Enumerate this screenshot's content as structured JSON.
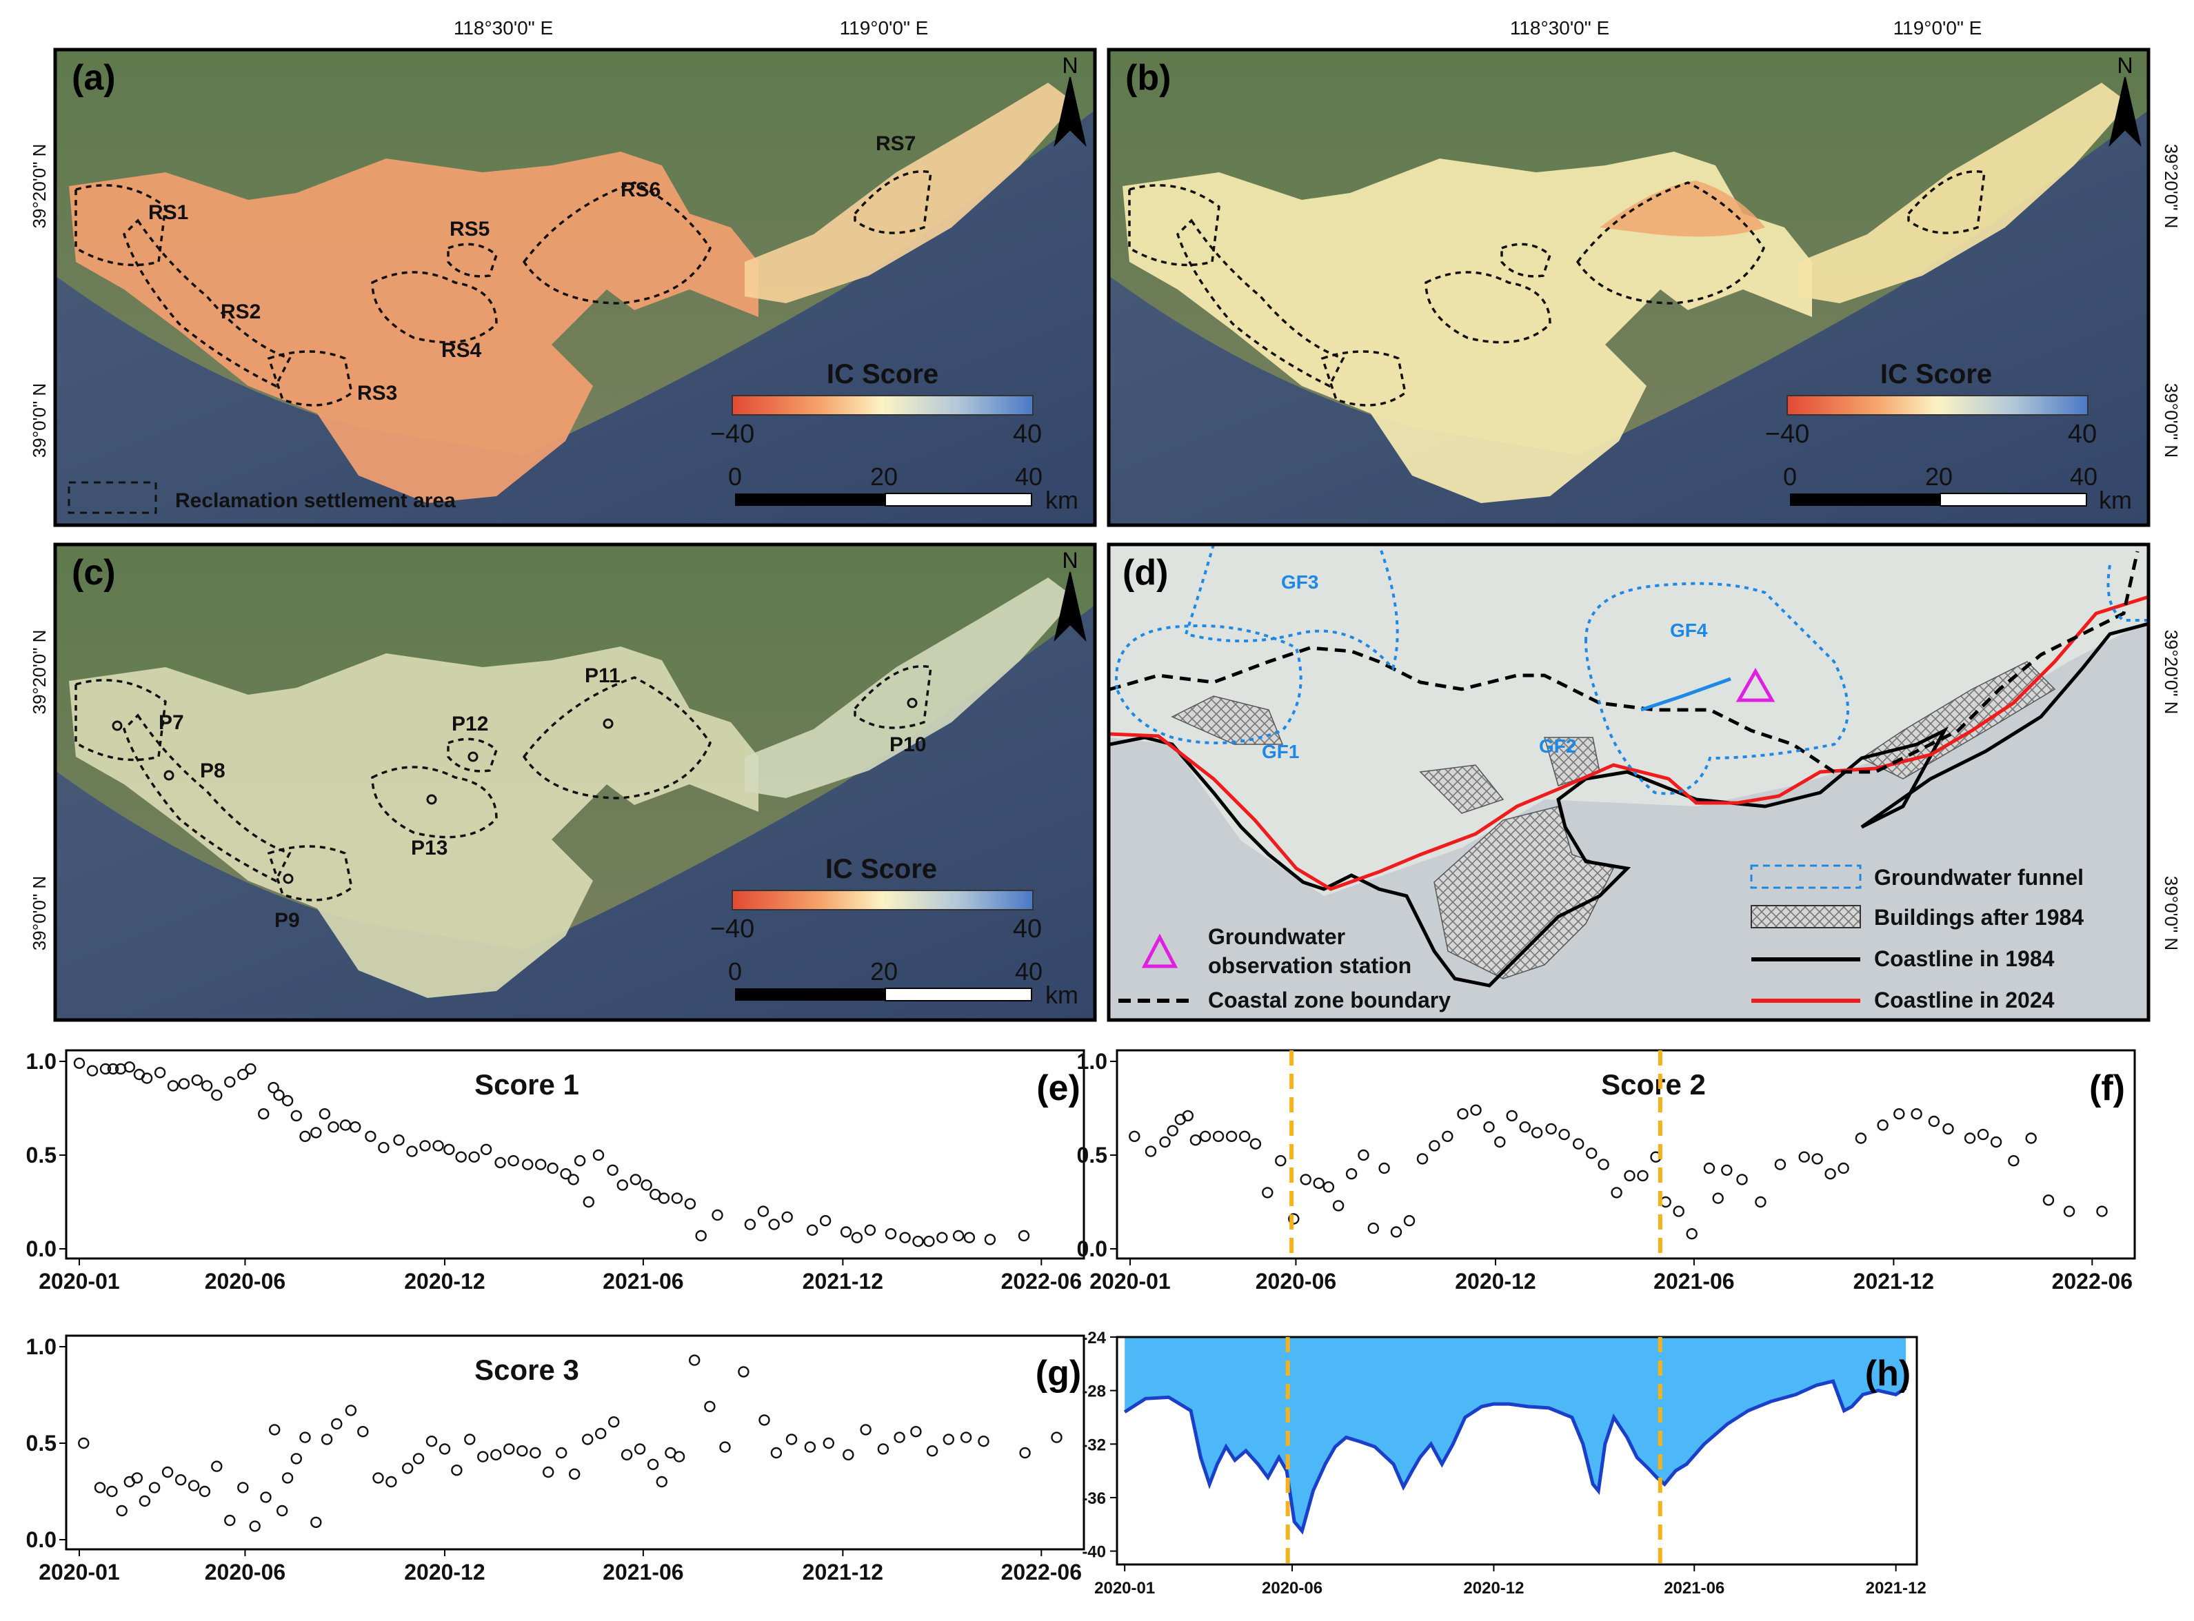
{
  "coords": {
    "lon1": "118°30'0\" E",
    "lon2": "119°0'0\" E",
    "lat1": "39°20'0\" N",
    "lat2": "39°0'0\" N"
  },
  "north": "N",
  "panels": {
    "a": {
      "label": "(a)",
      "zones": [
        "RS1",
        "RS2",
        "RS3",
        "RS4",
        "RS5",
        "RS6",
        "RS7"
      ],
      "colorbar": {
        "title": "IC Score",
        "min": "−40",
        "max": "40"
      },
      "scalebar": {
        "ticks": [
          "0",
          "20",
          "40"
        ],
        "unit": "km"
      },
      "legend": "Reclamation settlement area"
    },
    "b": {
      "label": "(b)",
      "colorbar": {
        "title": "IC Score",
        "min": "−40",
        "max": "40"
      },
      "scalebar": {
        "ticks": [
          "0",
          "20",
          "40"
        ],
        "unit": "km"
      }
    },
    "c": {
      "label": "(c)",
      "points": [
        "P7",
        "P8",
        "P9",
        "P10",
        "P11",
        "P12",
        "P13"
      ],
      "colorbar": {
        "title": "IC Score",
        "min": "−40",
        "max": "40"
      },
      "scalebar": {
        "ticks": [
          "0",
          "20",
          "40"
        ],
        "unit": "km"
      }
    },
    "d": {
      "label": "(d)",
      "funnels": [
        "GF1",
        "GF2",
        "GF3",
        "GF4"
      ],
      "legend": {
        "funnel": "Groundwater funnel",
        "buildings": "Buildings after 1984",
        "coast1984": "Coastline in 1984",
        "coast2024": "Coastline in 2024",
        "station_line1": "Groundwater",
        "station_line2": "observation station",
        "boundary": "Coastal zone boundary"
      }
    }
  },
  "colors": {
    "ic_low": "#e34a33",
    "ic_mid": "#fbf3c4",
    "ic_high": "#4a78c7",
    "funnel": "#1e88e5",
    "coast2024": "#ee1c1c",
    "coast1984": "#000000",
    "station": "#e020e0",
    "water_fill": "#4db8f8",
    "water_line": "#1a3fc8",
    "marker_line": "#f6b21a"
  },
  "chart_data": [
    {
      "panel": "(e)",
      "type": "scatter",
      "title": "Score 1",
      "ylim": [
        0,
        1.0
      ],
      "y_ticks": [
        "0.0",
        "0.5",
        "1.0"
      ],
      "x_ticks": [
        "2020-01",
        "2020-06",
        "2020-12",
        "2021-06",
        "2021-12",
        "2022-06"
      ],
      "x": [
        "2020-01-01",
        "2020-01-13",
        "2020-01-25",
        "2020-02-01",
        "2020-02-08",
        "2020-02-16",
        "2020-02-25",
        "2020-03-03",
        "2020-03-15",
        "2020-03-27",
        "2020-04-06",
        "2020-04-18",
        "2020-04-27",
        "2020-05-06",
        "2020-05-18",
        "2020-05-30",
        "2020-06-06",
        "2020-06-18",
        "2020-06-27",
        "2020-07-02",
        "2020-07-10",
        "2020-07-18",
        "2020-07-26",
        "2020-08-05",
        "2020-08-13",
        "2020-08-21",
        "2020-09-01",
        "2020-09-10",
        "2020-09-24",
        "2020-10-06",
        "2020-10-20",
        "2020-11-01",
        "2020-11-13",
        "2020-11-25",
        "2020-12-05",
        "2020-12-16",
        "2020-12-28",
        "2021-01-08",
        "2021-01-21",
        "2021-02-02",
        "2021-02-15",
        "2021-02-27",
        "2021-03-10",
        "2021-03-22",
        "2021-03-29",
        "2021-04-04",
        "2021-04-12",
        "2021-04-21",
        "2021-05-04",
        "2021-05-13",
        "2021-05-25",
        "2021-06-04",
        "2021-06-12",
        "2021-06-20",
        "2021-07-02",
        "2021-07-14",
        "2021-07-24",
        "2021-08-08",
        "2021-09-07",
        "2021-09-19",
        "2021-09-29",
        "2021-10-11",
        "2021-11-03",
        "2021-11-15",
        "2021-12-04",
        "2021-12-14",
        "2021-12-26",
        "2022-01-14",
        "2022-01-27",
        "2022-02-08",
        "2022-02-18",
        "2022-03-02",
        "2022-03-17",
        "2022-03-27",
        "2022-04-15",
        "2022-05-16"
      ],
      "y": [
        0.99,
        0.95,
        0.96,
        0.96,
        0.96,
        0.97,
        0.93,
        0.91,
        0.94,
        0.87,
        0.88,
        0.9,
        0.87,
        0.82,
        0.89,
        0.93,
        0.96,
        0.72,
        0.86,
        0.82,
        0.79,
        0.71,
        0.6,
        0.62,
        0.72,
        0.65,
        0.66,
        0.65,
        0.6,
        0.54,
        0.58,
        0.52,
        0.55,
        0.55,
        0.53,
        0.49,
        0.49,
        0.53,
        0.46,
        0.47,
        0.45,
        0.45,
        0.43,
        0.4,
        0.37,
        0.47,
        0.25,
        0.5,
        0.42,
        0.34,
        0.37,
        0.34,
        0.29,
        0.27,
        0.27,
        0.24,
        0.07,
        0.18,
        0.13,
        0.2,
        0.13,
        0.17,
        0.1,
        0.15,
        0.09,
        0.06,
        0.1,
        0.08,
        0.06,
        0.04,
        0.04,
        0.06,
        0.07,
        0.06,
        0.05,
        0.07
      ]
    },
    {
      "panel": "(f)",
      "type": "scatter",
      "title": "Score 2",
      "ylim": [
        0,
        1.0
      ],
      "y_ticks": [
        "0.0",
        "0.5",
        "1.0"
      ],
      "x_ticks": [
        "2020-01",
        "2020-06",
        "2020-12",
        "2021-06",
        "2021-12",
        "2022-06"
      ],
      "x": [
        "2020-01-05",
        "2020-01-20",
        "2020-02-02",
        "2020-02-09",
        "2020-02-16",
        "2020-02-23",
        "2020-03-01",
        "2020-03-10",
        "2020-03-22",
        "2020-04-03",
        "2020-04-15",
        "2020-04-25",
        "2020-05-06",
        "2020-05-18",
        "2020-05-30",
        "2020-06-10",
        "2020-06-22",
        "2020-07-01",
        "2020-07-10",
        "2020-07-22",
        "2020-08-02",
        "2020-08-11",
        "2020-08-21",
        "2020-09-01",
        "2020-09-13",
        "2020-09-25",
        "2020-10-06",
        "2020-10-18",
        "2020-11-01",
        "2020-11-13",
        "2020-11-25",
        "2020-12-05",
        "2020-12-16",
        "2020-12-28",
        "2021-01-08",
        "2021-01-21",
        "2021-02-02",
        "2021-02-15",
        "2021-02-27",
        "2021-03-10",
        "2021-03-22",
        "2021-04-03",
        "2021-04-15",
        "2021-04-27",
        "2021-05-06",
        "2021-05-18",
        "2021-05-30",
        "2021-06-15",
        "2021-06-23",
        "2021-07-01",
        "2021-07-15",
        "2021-08-01",
        "2021-08-19",
        "2021-09-10",
        "2021-09-22",
        "2021-10-04",
        "2021-10-16",
        "2021-11-01",
        "2021-11-21",
        "2021-12-06",
        "2021-12-22",
        "2022-01-07",
        "2022-01-20",
        "2022-02-09",
        "2022-02-21",
        "2022-03-05",
        "2022-03-21",
        "2022-04-06",
        "2022-04-22",
        "2022-05-11",
        "2022-06-10"
      ],
      "y": [
        0.6,
        0.52,
        0.57,
        0.63,
        0.69,
        0.71,
        0.58,
        0.6,
        0.6,
        0.6,
        0.6,
        0.56,
        0.3,
        0.47,
        0.16,
        0.37,
        0.35,
        0.33,
        0.23,
        0.4,
        0.5,
        0.11,
        0.43,
        0.09,
        0.15,
        0.48,
        0.55,
        0.6,
        0.72,
        0.74,
        0.65,
        0.57,
        0.71,
        0.65,
        0.62,
        0.64,
        0.61,
        0.56,
        0.51,
        0.45,
        0.3,
        0.39,
        0.39,
        0.49,
        0.25,
        0.2,
        0.08,
        0.43,
        0.27,
        0.42,
        0.37,
        0.25,
        0.45,
        0.49,
        0.48,
        0.4,
        0.43,
        0.59,
        0.66,
        0.72,
        0.72,
        0.68,
        0.64,
        0.59,
        0.61,
        0.57,
        0.47,
        0.59,
        0.26,
        0.2,
        0.2
      ]
    },
    {
      "panel": "(g)",
      "type": "scatter",
      "title": "Score 3",
      "ylim": [
        0,
        1.0
      ],
      "y_ticks": [
        "0.0",
        "0.5",
        "1.0"
      ],
      "x_ticks": [
        "2020-01",
        "2020-06",
        "2020-12",
        "2021-06",
        "2021-12",
        "2022-06"
      ],
      "x": [
        "2020-01-05",
        "2020-01-20",
        "2020-01-31",
        "2020-02-09",
        "2020-02-16",
        "2020-02-23",
        "2020-03-01",
        "2020-03-10",
        "2020-03-22",
        "2020-04-03",
        "2020-04-15",
        "2020-04-25",
        "2020-05-06",
        "2020-05-18",
        "2020-05-30",
        "2020-06-10",
        "2020-06-20",
        "2020-06-28",
        "2020-07-05",
        "2020-07-10",
        "2020-07-18",
        "2020-07-26",
        "2020-08-05",
        "2020-08-15",
        "2020-08-24",
        "2020-09-06",
        "2020-09-17",
        "2020-10-01",
        "2020-10-13",
        "2020-10-28",
        "2020-11-07",
        "2020-11-19",
        "2020-12-01",
        "2020-12-12",
        "2020-12-24",
        "2021-01-05",
        "2021-01-17",
        "2021-01-29",
        "2021-02-10",
        "2021-02-22",
        "2021-03-06",
        "2021-03-18",
        "2021-03-30",
        "2021-04-11",
        "2021-04-23",
        "2021-05-05",
        "2021-05-17",
        "2021-05-29",
        "2021-06-10",
        "2021-06-18",
        "2021-06-26",
        "2021-07-04",
        "2021-07-18",
        "2021-08-01",
        "2021-08-15",
        "2021-09-01",
        "2021-09-20",
        "2021-10-01",
        "2021-10-15",
        "2021-11-01",
        "2021-11-18",
        "2021-12-06",
        "2021-12-22",
        "2022-01-07",
        "2022-01-22",
        "2022-02-06",
        "2022-02-21",
        "2022-03-08",
        "2022-03-24",
        "2022-04-09",
        "2022-05-17",
        "2022-06-15"
      ],
      "y": [
        0.5,
        0.27,
        0.25,
        0.15,
        0.3,
        0.32,
        0.2,
        0.27,
        0.35,
        0.31,
        0.28,
        0.25,
        0.38,
        0.1,
        0.27,
        0.07,
        0.22,
        0.57,
        0.15,
        0.32,
        0.42,
        0.53,
        0.09,
        0.52,
        0.6,
        0.67,
        0.56,
        0.32,
        0.3,
        0.37,
        0.42,
        0.51,
        0.47,
        0.36,
        0.52,
        0.43,
        0.44,
        0.47,
        0.46,
        0.45,
        0.35,
        0.45,
        0.34,
        0.52,
        0.55,
        0.61,
        0.44,
        0.47,
        0.39,
        0.3,
        0.45,
        0.43,
        0.93,
        0.69,
        0.48,
        0.87,
        0.62,
        0.45,
        0.52,
        0.48,
        0.5,
        0.44,
        0.57,
        0.47,
        0.53,
        0.56,
        0.46,
        0.52,
        0.53,
        0.51,
        0.45,
        0.53
      ]
    },
    {
      "panel": "(h)",
      "type": "area",
      "ylim": [
        -41,
        -24
      ],
      "y_ticks": [
        "-24",
        "-28",
        "-32",
        "-36",
        "-40"
      ],
      "x_ticks": [
        "2020-01",
        "2020-06",
        "2020-12",
        "2021-06",
        "2021-12"
      ],
      "x": [
        "2020-01-01",
        "2020-01-20",
        "2020-02-10",
        "2020-03-01",
        "2020-03-10",
        "2020-03-18",
        "2020-03-25",
        "2020-04-02",
        "2020-04-10",
        "2020-04-20",
        "2020-05-01",
        "2020-05-10",
        "2020-05-20",
        "2020-05-27",
        "2020-06-03",
        "2020-06-10",
        "2020-06-20",
        "2020-07-01",
        "2020-07-10",
        "2020-07-20",
        "2020-08-01",
        "2020-08-15",
        "2020-09-01",
        "2020-09-10",
        "2020-09-18",
        "2020-09-25",
        "2020-10-05",
        "2020-10-15",
        "2020-10-25",
        "2020-11-05",
        "2020-11-20",
        "2020-12-01",
        "2020-12-15",
        "2021-01-01",
        "2021-01-20",
        "2021-02-10",
        "2021-02-20",
        "2021-03-01",
        "2021-03-06",
        "2021-03-12",
        "2021-03-20",
        "2021-04-01",
        "2021-04-10",
        "2021-04-20",
        "2021-04-28",
        "2021-05-05",
        "2021-05-15",
        "2021-05-25",
        "2021-06-10",
        "2021-07-01",
        "2021-07-20",
        "2021-08-10",
        "2021-09-01",
        "2021-09-20",
        "2021-10-05",
        "2021-10-15",
        "2021-10-22",
        "2021-11-01",
        "2021-11-15",
        "2021-12-01",
        "2021-12-10"
      ],
      "y": [
        -29.6,
        -28.6,
        -28.5,
        -29.5,
        -33.0,
        -35.0,
        -33.5,
        -32.2,
        -33.2,
        -32.5,
        -33.5,
        -34.5,
        -33.0,
        -34.0,
        -37.8,
        -38.5,
        -35.5,
        -33.5,
        -32.2,
        -31.5,
        -31.8,
        -32.2,
        -33.5,
        -35.2,
        -34.0,
        -33.0,
        -32.0,
        -33.5,
        -32.0,
        -30.0,
        -29.2,
        -29.0,
        -29.0,
        -29.2,
        -29.3,
        -30.0,
        -32.0,
        -35.0,
        -35.5,
        -32.0,
        -30.0,
        -31.5,
        -33.0,
        -33.8,
        -34.5,
        -35.0,
        -34.0,
        -33.5,
        -32.0,
        -30.5,
        -29.5,
        -28.8,
        -28.3,
        -27.6,
        -27.3,
        -29.5,
        -29.2,
        -28.3,
        -28.0,
        -28.3,
        -27.8
      ],
      "reference_dates": [
        "2020-05-28",
        "2021-05-01"
      ]
    }
  ]
}
